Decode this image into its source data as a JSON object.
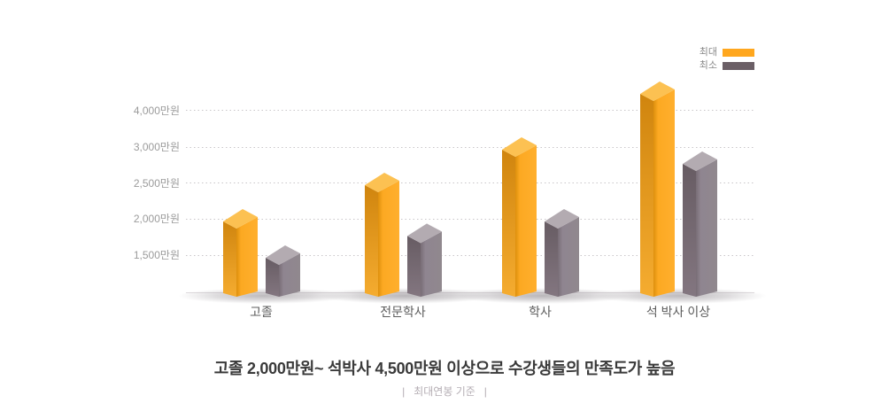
{
  "legend": {
    "max_label": "최대",
    "min_label": "최소",
    "max_color": "#FFA71E",
    "min_color": "#6B5F66"
  },
  "caption": {
    "title": "고졸 2,000만원~ 석박사 4,500만원 이상으로 수강생들의 만족도가 높음",
    "note": "|   최대연봉 기준   |"
  },
  "chart_data": {
    "type": "bar",
    "style": "3d-column-pairs",
    "title": "고졸 2,000만원~ 석박사 4,500만원 이상으로 수강생들의 만족도가 높음",
    "footnote": "최대연봉 기준",
    "categories": [
      "고졸",
      "전문학사",
      "학사",
      "석 박사 이상"
    ],
    "series": [
      {
        "name": "최대",
        "color": "#FFA71E",
        "values": [
          2000,
          2500,
          3000,
          4500
        ]
      },
      {
        "name": "최소",
        "color": "#8E838C",
        "values": [
          1500,
          1800,
          2000,
          2800
        ]
      }
    ],
    "unit": "만원",
    "y_ticks": [
      "4,000만원",
      "3,000만원",
      "2,500만원",
      "2,000만원",
      "1,500만원"
    ],
    "y_tick_values": [
      4000,
      3000,
      2500,
      2000,
      1500
    ],
    "ylim": [
      1000,
      4600
    ],
    "y_axis_nonlinear": true,
    "grid": "horizontal-dotted",
    "legend_position": "top-right",
    "xlabel": "",
    "ylabel": ""
  }
}
